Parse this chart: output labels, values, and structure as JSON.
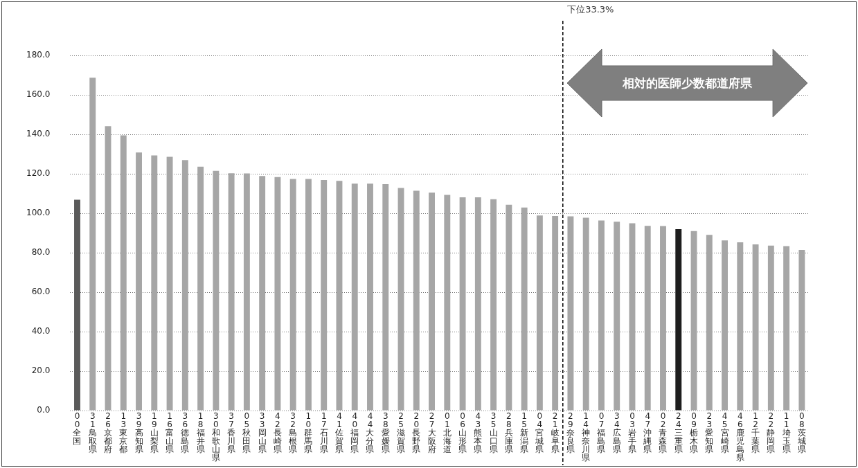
{
  "chart_data": {
    "type": "bar",
    "categories": [
      "00全国",
      "31鳥取県",
      "26京都府",
      "13東京都",
      "39高知県",
      "19山梨県",
      "16富山県",
      "36徳島県",
      "18福井県",
      "30和歌山県",
      "37香川県",
      "05秋田県",
      "33岡山県",
      "42長崎県",
      "32島根県",
      "10群馬県",
      "17石川県",
      "41佐賀県",
      "40福岡県",
      "44大分県",
      "38愛媛県",
      "25滋賀県",
      "20長野県",
      "27大阪府",
      "01北海道",
      "06山形県",
      "43熊本県",
      "35山口県",
      "28兵庫県",
      "15新潟県",
      "04宮城県",
      "21岐阜県",
      "29奈良県",
      "14神奈川県",
      "07福島県",
      "34広島県",
      "03岩手県",
      "47沖縄県",
      "02青森県",
      "24三重県",
      "09栃木県",
      "23愛知県",
      "45宮崎県",
      "46鹿児島県",
      "12千葉県",
      "22静岡県",
      "11埼玉県",
      "08茨城県"
    ],
    "values": [
      106.8,
      168.7,
      144.1,
      139.5,
      130.8,
      129.3,
      128.6,
      126.9,
      123.6,
      121.5,
      120.3,
      120.2,
      118.9,
      118.3,
      117.4,
      117.4,
      116.8,
      116.4,
      115.0,
      115.0,
      114.7,
      112.8,
      111.4,
      110.4,
      109.3,
      108.1,
      108.1,
      107.1,
      104.3,
      102.9,
      98.9,
      98.6,
      98.4,
      97.7,
      96.3,
      95.7,
      94.9,
      93.6,
      93.5,
      91.9,
      91.0,
      89.0,
      86.2,
      85.3,
      84.2,
      83.6,
      83.3,
      81.4
    ],
    "colors": [
      "#5a5a5a",
      "#a6a6a6",
      "#a6a6a6",
      "#a6a6a6",
      "#a6a6a6",
      "#a6a6a6",
      "#a6a6a6",
      "#a6a6a6",
      "#a6a6a6",
      "#a6a6a6",
      "#a6a6a6",
      "#a6a6a6",
      "#a6a6a6",
      "#a6a6a6",
      "#a6a6a6",
      "#a6a6a6",
      "#a6a6a6",
      "#a6a6a6",
      "#a6a6a6",
      "#a6a6a6",
      "#a6a6a6",
      "#a6a6a6",
      "#a6a6a6",
      "#a6a6a6",
      "#a6a6a6",
      "#a6a6a6",
      "#a6a6a6",
      "#a6a6a6",
      "#a6a6a6",
      "#a6a6a6",
      "#a6a6a6",
      "#a6a6a6",
      "#a6a6a6",
      "#a6a6a6",
      "#a6a6a6",
      "#a6a6a6",
      "#a6a6a6",
      "#a6a6a6",
      "#a6a6a6",
      "#1e1e1e",
      "#a6a6a6",
      "#a6a6a6",
      "#a6a6a6",
      "#a6a6a6",
      "#a6a6a6",
      "#a6a6a6",
      "#a6a6a6",
      "#a6a6a6"
    ],
    "ylim": [
      0,
      180
    ],
    "yticks": [
      {
        "value": 0,
        "label": "0.0"
      },
      {
        "value": 20,
        "label": "20.0"
      },
      {
        "value": 40,
        "label": "40.0"
      },
      {
        "value": 60,
        "label": "60.0"
      },
      {
        "value": 80,
        "label": "80.0"
      },
      {
        "value": 100,
        "label": "100.0"
      },
      {
        "value": 120,
        "label": "120.0"
      },
      {
        "value": 140,
        "label": "140.0"
      },
      {
        "value": 160,
        "label": "160.0"
      },
      {
        "value": 180,
        "label": "180.0"
      }
    ],
    "grid": "y",
    "legend": false,
    "ref_lines": [
      {
        "axis": "x",
        "value": "29奈良県",
        "label": "下位33.3%",
        "color": "#000000",
        "line_style": "dashed"
      }
    ],
    "annotations": [
      "相対的医師少数都道府県"
    ]
  }
}
